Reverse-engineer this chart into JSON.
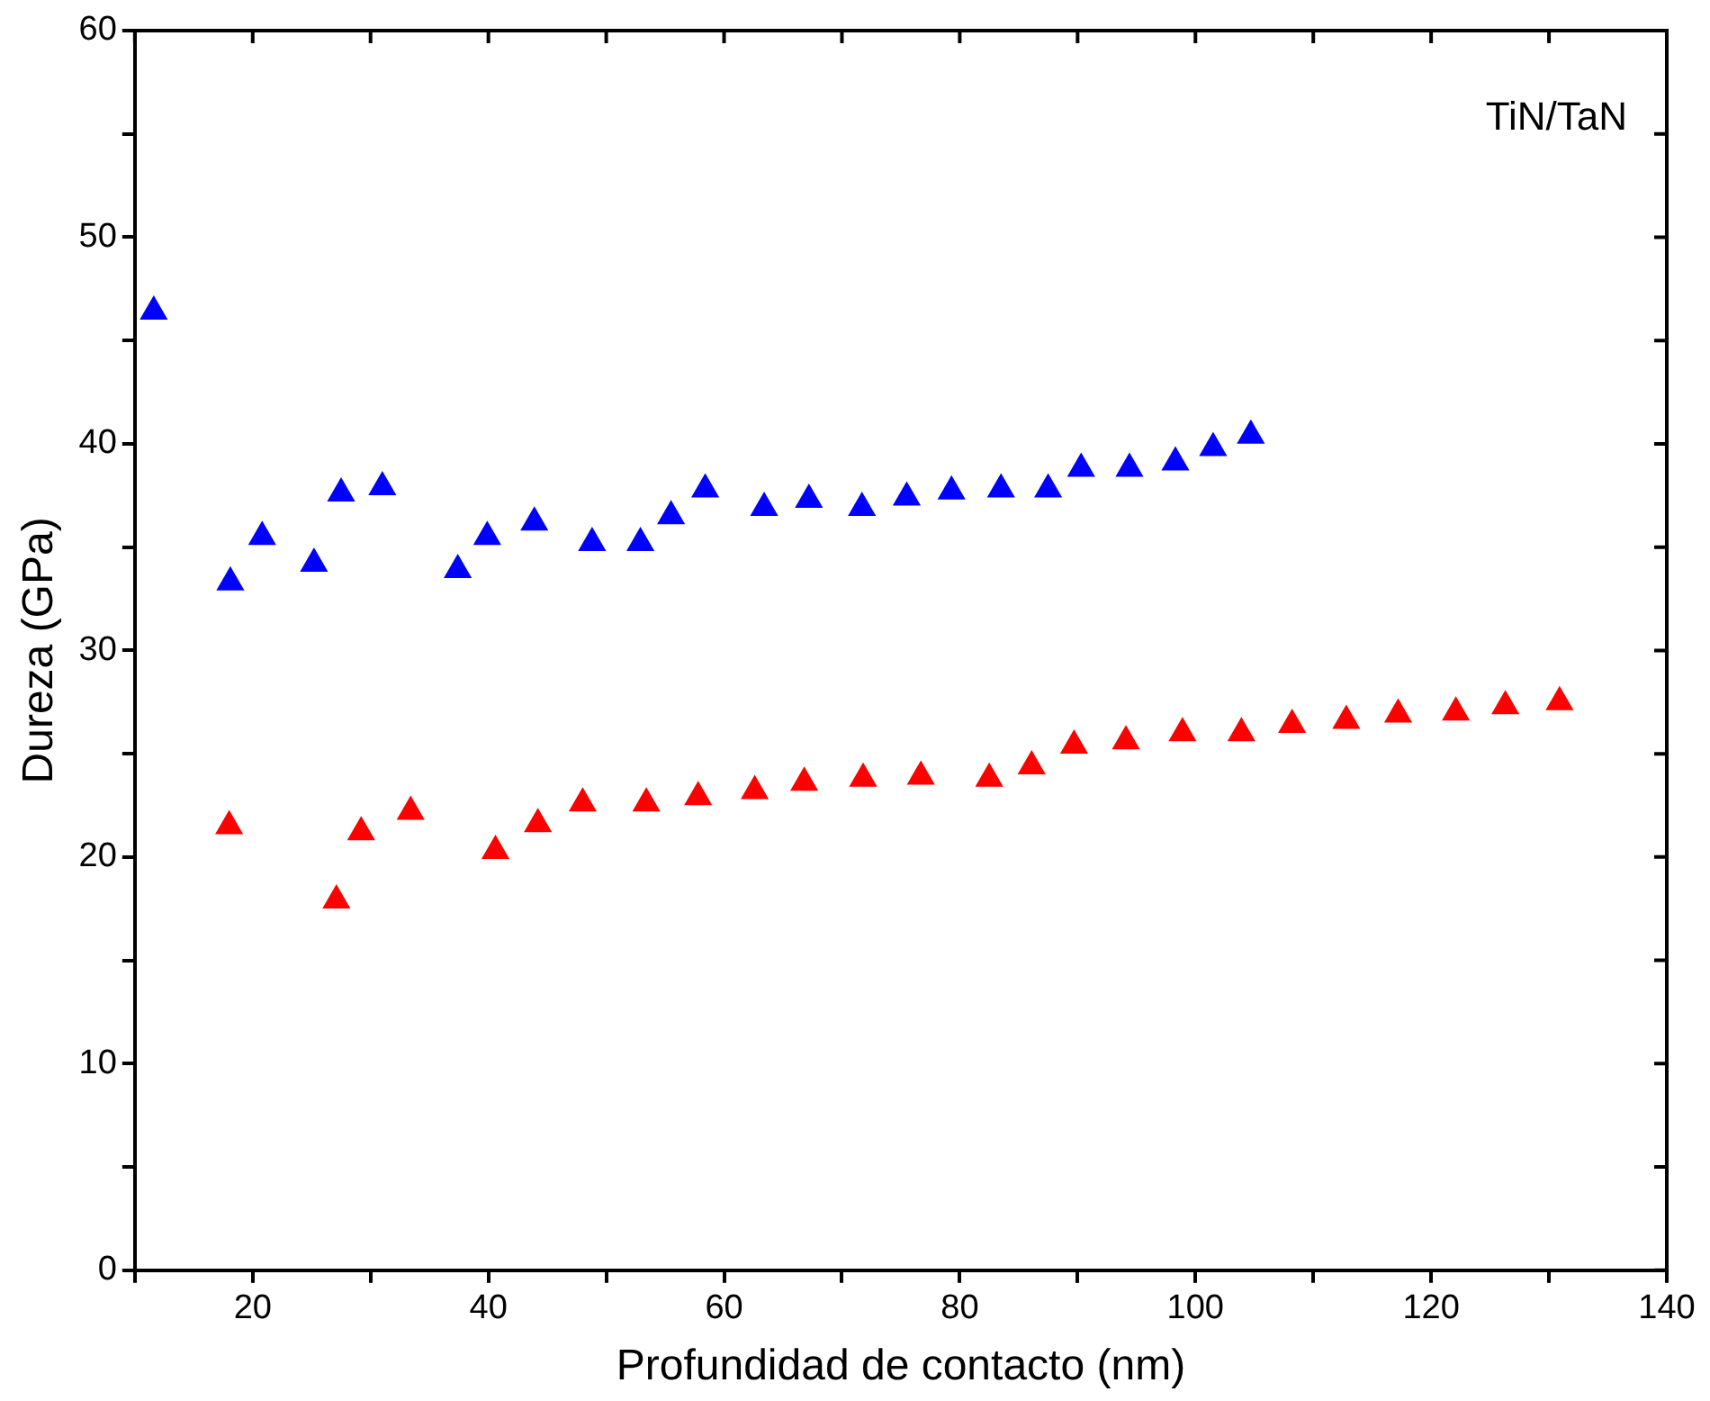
{
  "chart_data": {
    "type": "scatter",
    "xlabel": "Profundidad de contacto (nm)",
    "ylabel": "Dureza (GPa)",
    "annotations": [
      "TiN/TaN"
    ],
    "xlim": [
      10,
      140
    ],
    "ylim": [
      0,
      60
    ],
    "xticks": [
      {
        "value": 10,
        "label": null
      },
      20,
      {
        "value": 30,
        "label": null
      },
      40,
      {
        "value": 50,
        "label": null
      },
      60,
      {
        "value": 70,
        "label": null
      },
      80,
      {
        "value": 90,
        "label": null
      },
      100,
      {
        "value": 110,
        "label": null
      },
      120,
      {
        "value": 130,
        "label": null
      },
      140
    ],
    "yticks": [
      0,
      {
        "value": 5,
        "label": null
      },
      10,
      {
        "value": 15,
        "label": null
      },
      20,
      {
        "value": 25,
        "label": null
      },
      30,
      {
        "value": 35,
        "label": null
      },
      40,
      {
        "value": 45,
        "label": null
      },
      50,
      {
        "value": 55,
        "label": null
      },
      60
    ],
    "grid": false,
    "legend": false,
    "marker": "triangle",
    "series": [
      {
        "color": "#0000ff",
        "x": [
          11.6,
          18.1,
          20.8,
          25.2,
          27.5,
          31.0,
          37.4,
          39.9,
          43.9,
          48.8,
          52.9,
          55.5,
          58.4,
          63.4,
          67.2,
          71.7,
          75.5,
          79.3,
          83.5,
          87.5,
          90.3,
          94.4,
          98.3,
          101.5,
          104.7
        ],
        "values": [
          46.4,
          33.3,
          35.5,
          34.2,
          37.6,
          37.9,
          33.9,
          35.5,
          36.2,
          35.2,
          35.2,
          36.5,
          37.8,
          36.9,
          37.3,
          36.9,
          37.4,
          37.7,
          37.8,
          37.8,
          38.8,
          38.8,
          39.1,
          39.8,
          40.4
        ]
      },
      {
        "color": "#ff0000",
        "x": [
          18.0,
          27.1,
          29.2,
          33.4,
          40.6,
          44.2,
          48.0,
          53.4,
          57.8,
          62.6,
          66.8,
          71.8,
          76.7,
          82.5,
          86.1,
          89.7,
          94.1,
          98.9,
          103.9,
          108.2,
          112.8,
          117.2,
          122.1,
          126.3,
          130.9
        ],
        "values": [
          21.5,
          17.9,
          21.2,
          22.2,
          20.3,
          21.6,
          22.6,
          22.6,
          22.9,
          23.2,
          23.6,
          23.8,
          23.9,
          23.8,
          24.4,
          25.4,
          25.6,
          26.0,
          26.0,
          26.4,
          26.6,
          26.9,
          27.0,
          27.3,
          27.5
        ]
      }
    ]
  }
}
